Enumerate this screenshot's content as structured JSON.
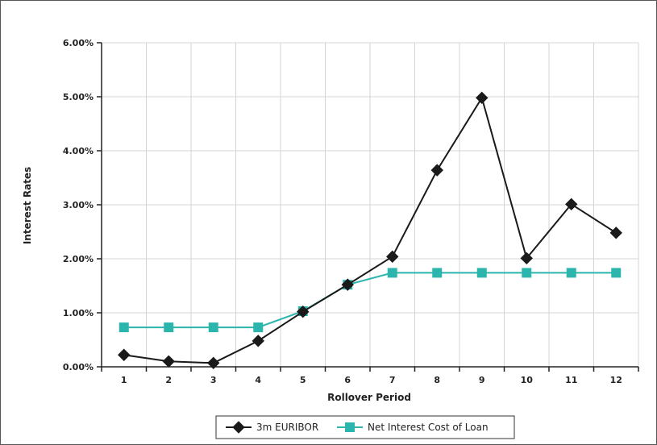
{
  "chart_data": {
    "type": "line",
    "title": "",
    "xlabel": "Rollover Period",
    "ylabel": "Interest Rates",
    "categories": [
      "1",
      "2",
      "3",
      "4",
      "5",
      "6",
      "7",
      "8",
      "9",
      "10",
      "11",
      "12"
    ],
    "ylim": [
      0,
      6
    ],
    "yticks": [
      0,
      1,
      2,
      3,
      4,
      5,
      6
    ],
    "ytick_labels": [
      "0.00%",
      "1.00%",
      "2.00%",
      "3.00%",
      "4.00%",
      "5.00%",
      "6.00%"
    ],
    "grid": true,
    "legend_position": "bottom",
    "series": [
      {
        "name": "3m EURIBOR",
        "color": "#1a1a1a",
        "marker": "diamond",
        "values": [
          0.22,
          0.1,
          0.07,
          0.48,
          1.02,
          1.52,
          2.04,
          3.64,
          4.98,
          2.01,
          3.01,
          2.48
        ]
      },
      {
        "name": "Net Interest Cost of Loan",
        "color": "#2bb5ad",
        "marker": "square",
        "values": [
          0.73,
          0.73,
          0.73,
          0.73,
          1.03,
          1.52,
          1.74,
          1.74,
          1.74,
          1.74,
          1.74,
          1.74
        ]
      }
    ]
  }
}
